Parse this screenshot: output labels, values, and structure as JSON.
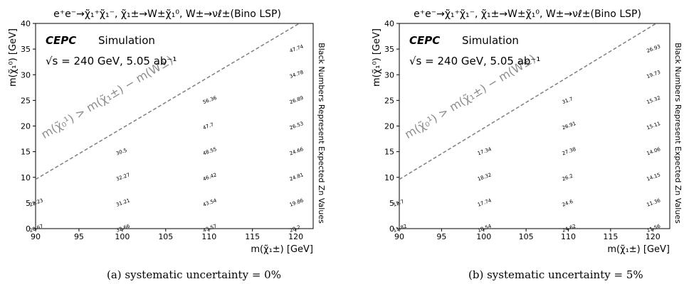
{
  "chart_data": [
    {
      "type": "scatter",
      "title": "e⁺e⁻→χ̃₁⁺χ̃₁⁻, χ̃₁±→W±χ̃₁⁰, W±→νℓ±(Bino LSP)",
      "experiment_label": "CEPC",
      "status_label": "Simulation",
      "energy_label": "√s = 240 GeV, 5.05 ab⁻¹",
      "xlabel": "m(χ̃₁±) [GeV]",
      "ylabel": "m(χ̃₁⁰) [GeV]",
      "side_label": "Black Numbers Represent Expected Zn Values",
      "kinematic_line_label": "m(χ̃₀¹) > m(χ̃₁±) − m(W±)",
      "xlim": [
        90,
        122
      ],
      "ylim": [
        0,
        40
      ],
      "xticks": [
        "90",
        "95",
        "100",
        "105",
        "110",
        "115",
        "120"
      ],
      "yticks": [
        "0",
        "5",
        "10",
        "15",
        "20",
        "25",
        "30",
        "35",
        "40"
      ],
      "kinematic_line": {
        "x": [
          90,
          120.4
        ],
        "y": [
          9.6,
          40
        ]
      },
      "points": [
        {
          "x": 90,
          "y": 0,
          "value": "20.67"
        },
        {
          "x": 90,
          "y": 5,
          "value": "22.23"
        },
        {
          "x": 100,
          "y": 0,
          "value": "32.66"
        },
        {
          "x": 100,
          "y": 5,
          "value": "31.21"
        },
        {
          "x": 100,
          "y": 10,
          "value": "32.27"
        },
        {
          "x": 100,
          "y": 15,
          "value": "30.5"
        },
        {
          "x": 110,
          "y": 0,
          "value": "43.57"
        },
        {
          "x": 110,
          "y": 5,
          "value": "43.54"
        },
        {
          "x": 110,
          "y": 10,
          "value": "46.42"
        },
        {
          "x": 110,
          "y": 15,
          "value": "48.55"
        },
        {
          "x": 110,
          "y": 20,
          "value": "47.7"
        },
        {
          "x": 110,
          "y": 25,
          "value": "56.36"
        },
        {
          "x": 120,
          "y": 0,
          "value": "20.2"
        },
        {
          "x": 120,
          "y": 5,
          "value": "19.86"
        },
        {
          "x": 120,
          "y": 10,
          "value": "24.81"
        },
        {
          "x": 120,
          "y": 15,
          "value": "24.66"
        },
        {
          "x": 120,
          "y": 20,
          "value": "26.53"
        },
        {
          "x": 120,
          "y": 25,
          "value": "26.89"
        },
        {
          "x": 120,
          "y": 30,
          "value": "34.78"
        },
        {
          "x": 120,
          "y": 35,
          "value": "47.74"
        }
      ],
      "caption": "(a)  systematic uncertainty = 0%"
    },
    {
      "type": "scatter",
      "title": "e⁺e⁻→χ̃₁⁺χ̃₁⁻, χ̃₁±→W±χ̃₁⁰, W±→νℓ±(Bino LSP)",
      "experiment_label": "CEPC",
      "status_label": "Simulation",
      "energy_label": "√s = 240 GeV, 5.05 ab⁻¹",
      "xlabel": "m(χ̃₁±) [GeV]",
      "ylabel": "m(χ̃₁⁰) [GeV]",
      "side_label": "Black Numbers Represent Expected Zn Values",
      "kinematic_line_label": "m(χ̃₀¹) > m(χ̃₁±) − m(W±)",
      "xlim": [
        90,
        122
      ],
      "ylim": [
        0,
        40
      ],
      "xticks": [
        "90",
        "95",
        "100",
        "105",
        "110",
        "115",
        "120"
      ],
      "yticks": [
        "0",
        "5",
        "10",
        "15",
        "20",
        "25",
        "30",
        "35",
        "40"
      ],
      "kinematic_line": {
        "x": [
          90,
          120.4
        ],
        "y": [
          9.6,
          40
        ]
      },
      "points": [
        {
          "x": 90,
          "y": 0,
          "value": "11.82"
        },
        {
          "x": 90,
          "y": 5,
          "value": "12.7"
        },
        {
          "x": 100,
          "y": 0,
          "value": "18.54"
        },
        {
          "x": 100,
          "y": 5,
          "value": "17.74"
        },
        {
          "x": 100,
          "y": 10,
          "value": "18.32"
        },
        {
          "x": 100,
          "y": 15,
          "value": "17.34"
        },
        {
          "x": 110,
          "y": 0,
          "value": "24.62"
        },
        {
          "x": 110,
          "y": 5,
          "value": "24.6"
        },
        {
          "x": 110,
          "y": 10,
          "value": "26.2"
        },
        {
          "x": 110,
          "y": 15,
          "value": "27.38"
        },
        {
          "x": 110,
          "y": 20,
          "value": "26.91"
        },
        {
          "x": 110,
          "y": 25,
          "value": "31.7"
        },
        {
          "x": 120,
          "y": 0,
          "value": "11.56"
        },
        {
          "x": 120,
          "y": 5,
          "value": "11.36"
        },
        {
          "x": 120,
          "y": 10,
          "value": "14.15"
        },
        {
          "x": 120,
          "y": 15,
          "value": "14.06"
        },
        {
          "x": 120,
          "y": 20,
          "value": "15.11"
        },
        {
          "x": 120,
          "y": 25,
          "value": "15.32"
        },
        {
          "x": 120,
          "y": 30,
          "value": "19.73"
        },
        {
          "x": 120,
          "y": 35,
          "value": "26.93"
        }
      ],
      "caption": "(b)  systematic uncertainty = 5%"
    }
  ]
}
